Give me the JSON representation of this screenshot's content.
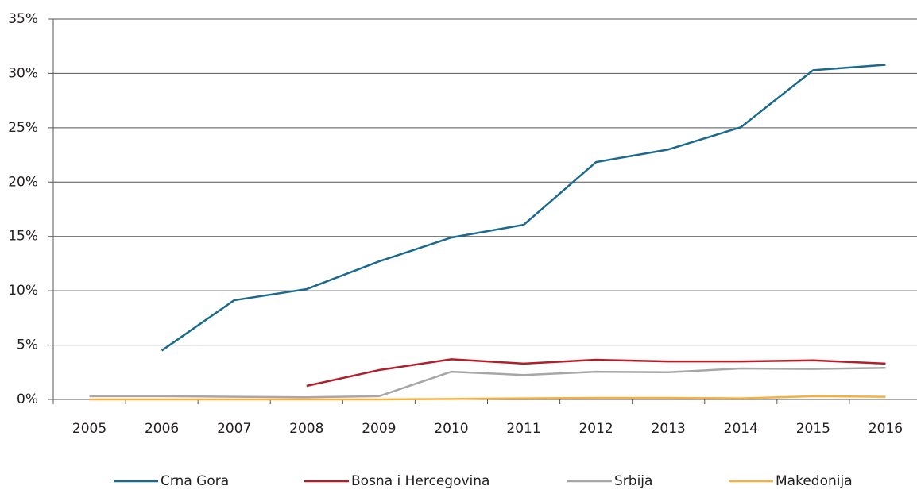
{
  "chart_data": {
    "type": "line",
    "categories": [
      "2005",
      "2006",
      "2007",
      "2008",
      "2009",
      "2010",
      "2011",
      "2012",
      "2013",
      "2014",
      "2015",
      "2016"
    ],
    "series": [
      {
        "name": "Crna Gora",
        "color": "#1b6a8e",
        "values": [
          null,
          4.5,
          9.13,
          10.15,
          12.7,
          14.9,
          16.07,
          21.84,
          23.0,
          25.05,
          30.3,
          30.8
        ]
      },
      {
        "name": "Bosna i Hercegovina",
        "color": "#b01f2b",
        "values": [
          null,
          null,
          null,
          1.24,
          2.7,
          3.7,
          3.3,
          3.65,
          3.5,
          3.5,
          3.6,
          3.3
        ]
      },
      {
        "name": "Srbija",
        "color": "#a7a7a7",
        "values": [
          0.3,
          0.3,
          0.25,
          0.2,
          0.3,
          2.55,
          2.25,
          2.55,
          2.5,
          2.85,
          2.8,
          2.9
        ]
      },
      {
        "name": "Makedonija",
        "color": "#f5b041",
        "values": [
          0,
          0,
          0,
          0,
          0,
          0.05,
          0.1,
          0.15,
          0.15,
          0.1,
          0.3,
          0.25
        ]
      }
    ],
    "ylim": [
      0,
      35
    ],
    "yticks": [
      {
        "value": 0,
        "label": "0%"
      },
      {
        "value": 5,
        "label": "5%"
      },
      {
        "value": 10,
        "label": "10%"
      },
      {
        "value": 15,
        "label": "15%"
      },
      {
        "value": 20,
        "label": "20%"
      },
      {
        "value": 25,
        "label": "25%"
      },
      {
        "value": 30,
        "label": "30%"
      },
      {
        "value": 35,
        "label": "35%"
      }
    ],
    "grid": true,
    "legend": "bottom"
  }
}
